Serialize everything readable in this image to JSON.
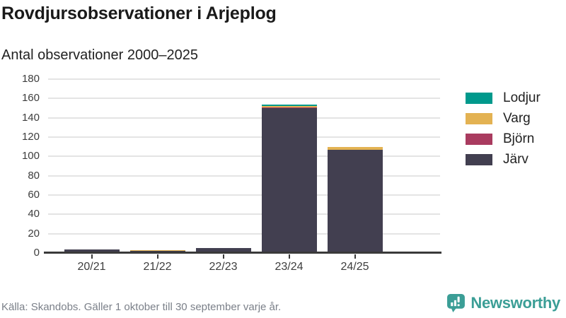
{
  "header": {
    "title": "Rovdjursobservationer i Arjeplog",
    "subtitle": "Antal observationer 2000–2025"
  },
  "footer": {
    "source": "Källa: Skandobs. Gäller 1 oktober till 30 september varje år.",
    "brand": "Newsworthy"
  },
  "colors": {
    "lodjur": "#00998C",
    "varg": "#E3B252",
    "bjorn": "#A93B5F",
    "jarv": "#423F50",
    "brand_teal": "#3B9E96",
    "gridline": "#E4E4E4",
    "axis": "#3A3A3A"
  },
  "chart_data": {
    "type": "bar",
    "stacked": true,
    "title": "Rovdjursobservationer i Arjeplog",
    "subtitle": "Antal observationer 2000–2025",
    "categories": [
      "20/21",
      "21/22",
      "22/23",
      "23/24",
      "24/25"
    ],
    "series": [
      {
        "name": "Järv",
        "color": "#423F50",
        "values": [
          4,
          2,
          5,
          150,
          107
        ]
      },
      {
        "name": "Björn",
        "color": "#A93B5F",
        "values": [
          0,
          0,
          0,
          1,
          0
        ]
      },
      {
        "name": "Varg",
        "color": "#E3B252",
        "values": [
          0,
          1,
          0,
          1,
          3
        ]
      },
      {
        "name": "Lodjur",
        "color": "#00998C",
        "values": [
          0,
          0,
          0,
          2,
          0
        ]
      }
    ],
    "legend": [
      {
        "label": "Lodjur",
        "color": "#00998C"
      },
      {
        "label": "Varg",
        "color": "#E3B252"
      },
      {
        "label": "Björn",
        "color": "#A93B5F"
      },
      {
        "label": "Järv",
        "color": "#423F50"
      }
    ],
    "legend_position": "right",
    "grid": true,
    "xlabel": "",
    "ylabel": "",
    "ylim": [
      0,
      180
    ],
    "ytick_step": 20
  }
}
